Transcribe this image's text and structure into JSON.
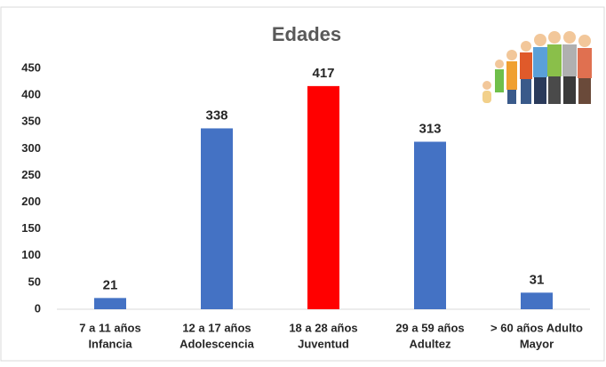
{
  "chart_data": {
    "type": "bar",
    "title": "Edades",
    "categories": [
      [
        "7 a 11 años",
        "Infancia"
      ],
      [
        "12 a 17 años",
        "Adolescencia"
      ],
      [
        "18 a 28 años",
        "Juventud"
      ],
      [
        "29 a 59 años",
        "Adultez"
      ],
      [
        "> 60 años Adulto",
        "Mayor"
      ]
    ],
    "values": [
      21,
      338,
      417,
      313,
      31
    ],
    "colors": [
      "#4472c4",
      "#4472c4",
      "#ff0000",
      "#4472c4",
      "#4472c4"
    ],
    "ylim": [
      0,
      450
    ],
    "yticks": [
      0,
      50,
      100,
      150,
      200,
      250,
      300,
      350,
      400,
      450
    ],
    "grid": false
  }
}
